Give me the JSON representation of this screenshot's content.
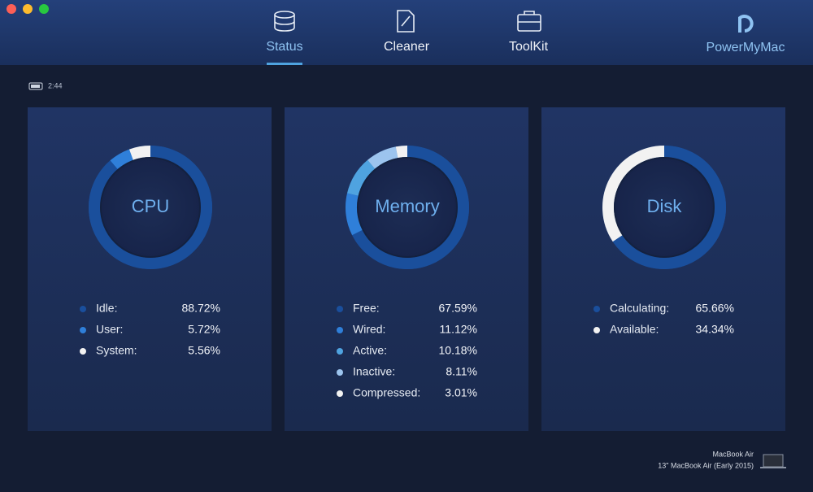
{
  "window": {
    "nav": [
      {
        "label": "Status",
        "active": true
      },
      {
        "label": "Cleaner"
      },
      {
        "label": "ToolKit"
      }
    ],
    "brand": "PowerMyMac",
    "battery": "2:44",
    "panels": [
      {
        "title": "CPU",
        "items": [
          {
            "name": "Idle:",
            "value": 88.72,
            "label": "88.72%",
            "color": "#1a4f9c"
          },
          {
            "name": "User:",
            "value": 5.72,
            "label": "5.72%",
            "color": "#2f7fd9"
          },
          {
            "name": "System:",
            "value": 5.56,
            "label": "5.56%",
            "color": "#f2f2f2"
          }
        ]
      },
      {
        "title": "Memory",
        "items": [
          {
            "name": "Free:",
            "value": 67.59,
            "label": "67.59%",
            "color": "#1a4f9c"
          },
          {
            "name": "Wired:",
            "value": 11.12,
            "label": "11.12%",
            "color": "#2f7fd9"
          },
          {
            "name": "Active:",
            "value": 10.18,
            "label": "10.18%",
            "color": "#4fa3e0"
          },
          {
            "name": "Inactive:",
            "value": 8.11,
            "label": "8.11%",
            "color": "#9cc4ee"
          },
          {
            "name": "Compressed:",
            "value": 3.01,
            "label": "3.01%",
            "color": "#f2f2f2"
          }
        ]
      },
      {
        "title": "Disk",
        "items": [
          {
            "name": "Calculating:",
            "value": 65.66,
            "label": "65.66%",
            "color": "#1a4f9c"
          },
          {
            "name": "Available:",
            "value": 34.34,
            "label": "34.34%",
            "color": "#f2f2f2"
          }
        ]
      }
    ],
    "device": {
      "name": "MacBook Air",
      "model": "13\" MacBook Air (Early 2015)"
    }
  }
}
